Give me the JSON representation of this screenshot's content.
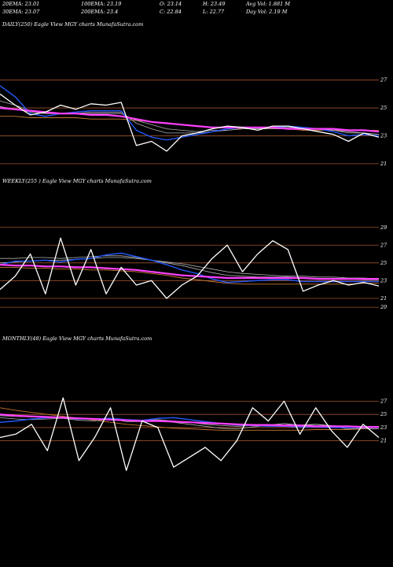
{
  "header": {
    "row1": [
      "20EMA: 23.01",
      "100EMA: 23.19",
      "O: 23.14",
      "H: 23.49",
      "Avg Vol: 1.881 M"
    ],
    "row2": [
      "30EMA: 23.07",
      "200EMA: 23.4",
      "C: 22.84",
      "L: 22.77",
      "Day Vol: 2.19 M"
    ]
  },
  "colors": {
    "background": "#000000",
    "price": "#ffffff",
    "ema_pink": "#ff40ff",
    "ema_blue": "#2255ee",
    "ema_brown": "#c87832",
    "ema_gray": "#b0b0b0",
    "gridline": "#a0522d"
  },
  "chart_data": [
    {
      "type": "line",
      "title": "DAILY(250) Eagle  View  MGY charts MunafaSutra.com",
      "yticks": [
        "27",
        "25",
        "23",
        "21"
      ],
      "ylim": [
        20.2,
        28.0
      ],
      "x": [
        0,
        10,
        20,
        30,
        40,
        50,
        60,
        70,
        80,
        90,
        100,
        110,
        120,
        130,
        140,
        150,
        160,
        170,
        180,
        190,
        200,
        210,
        220,
        230,
        240,
        250
      ],
      "series": [
        {
          "role": "price",
          "values": [
            26.0,
            25.2,
            24.5,
            24.7,
            25.2,
            24.9,
            25.3,
            25.2,
            25.4,
            22.3,
            22.6,
            21.9,
            23.0,
            23.2,
            23.5,
            23.7,
            23.6,
            23.4,
            23.7,
            23.7,
            23.5,
            23.3,
            23.1,
            22.6,
            23.2,
            22.9
          ]
        },
        {
          "role": "ema-blue",
          "values": [
            26.6,
            25.8,
            24.6,
            24.4,
            24.6,
            24.7,
            24.8,
            24.8,
            24.8,
            23.4,
            22.9,
            22.7,
            22.9,
            23.1,
            23.3,
            23.5,
            23.6,
            23.6,
            23.6,
            23.7,
            23.6,
            23.5,
            23.3,
            23.0,
            23.1,
            23.0
          ]
        },
        {
          "role": "ema-gray-1",
          "values": [
            25.5,
            25.2,
            24.8,
            24.6,
            24.6,
            24.6,
            24.7,
            24.7,
            24.7,
            23.9,
            23.5,
            23.2,
            23.2,
            23.2,
            23.3,
            23.4,
            23.5,
            23.5,
            23.6,
            23.6,
            23.6,
            23.5,
            23.4,
            23.2,
            23.2,
            23.1
          ]
        },
        {
          "role": "ema-gray-2",
          "values": [
            25.1,
            24.9,
            24.7,
            24.6,
            24.6,
            24.6,
            24.6,
            24.6,
            24.6,
            24.1,
            23.8,
            23.5,
            23.4,
            23.3,
            23.4,
            23.4,
            23.5,
            23.5,
            23.5,
            23.5,
            23.5,
            23.5,
            23.4,
            23.3,
            23.2,
            23.1
          ]
        },
        {
          "role": "ema-pink",
          "values": [
            25.0,
            24.9,
            24.8,
            24.7,
            24.6,
            24.6,
            24.5,
            24.5,
            24.4,
            24.2,
            24.0,
            23.9,
            23.8,
            23.7,
            23.6,
            23.6,
            23.6,
            23.6,
            23.6,
            23.5,
            23.5,
            23.5,
            23.5,
            23.4,
            23.4,
            23.3
          ]
        },
        {
          "role": "ema-brown",
          "values": [
            24.4,
            24.4,
            24.3,
            24.3,
            24.3,
            24.3,
            24.2,
            24.2,
            24.2,
            24.1,
            24.0,
            23.9,
            23.8,
            23.7,
            23.6,
            23.6,
            23.5,
            23.5,
            23.5,
            23.5,
            23.4,
            23.4,
            23.4,
            23.4,
            23.4,
            23.4
          ]
        }
      ]
    },
    {
      "type": "line",
      "title": "WEEKLY(255                    ) Eagle  View  MGY charts MunafaSutra.com",
      "yticks": [
        "29",
        "27",
        "25",
        "23",
        "21",
        "20"
      ],
      "ylim": [
        19.3,
        29.6
      ],
      "x": [
        0,
        10,
        20,
        30,
        40,
        50,
        60,
        70,
        80,
        90,
        100,
        110,
        120,
        130,
        140,
        150,
        160,
        170,
        180,
        190,
        200,
        210,
        220,
        230,
        240,
        250
      ],
      "series": [
        {
          "role": "price",
          "values": [
            22.0,
            23.5,
            26.0,
            21.5,
            27.8,
            22.5,
            26.5,
            21.5,
            24.5,
            22.5,
            23.0,
            21.0,
            22.5,
            23.5,
            25.5,
            27.0,
            24.0,
            26.0,
            27.5,
            26.5,
            21.8,
            22.5,
            23.0,
            22.5,
            22.8,
            22.4
          ]
        },
        {
          "role": "ema-blue",
          "values": [
            24.8,
            25.2,
            25.2,
            25.3,
            25.1,
            25.4,
            25.5,
            25.9,
            26.1,
            25.7,
            25.3,
            24.8,
            24.2,
            23.8,
            23.2,
            22.8,
            22.9,
            23.0,
            23.1,
            23.1,
            22.9,
            22.9,
            22.9,
            22.9,
            22.9,
            22.9
          ]
        },
        {
          "role": "ema-gray-1",
          "values": [
            25.5,
            25.5,
            25.6,
            25.6,
            25.5,
            25.6,
            25.7,
            25.8,
            25.8,
            25.6,
            25.3,
            25.0,
            24.7,
            24.3,
            23.9,
            23.6,
            23.5,
            23.4,
            23.4,
            23.4,
            23.3,
            23.2,
            23.2,
            23.2,
            23.1,
            23.1
          ]
        },
        {
          "role": "ema-gray-2",
          "values": [
            25.0,
            25.1,
            25.2,
            25.3,
            25.3,
            25.4,
            25.5,
            25.6,
            25.6,
            25.5,
            25.3,
            25.1,
            24.9,
            24.6,
            24.3,
            24.0,
            23.8,
            23.7,
            23.6,
            23.5,
            23.5,
            23.4,
            23.4,
            23.3,
            23.3,
            23.2
          ]
        },
        {
          "role": "ema-pink",
          "values": [
            24.8,
            24.7,
            24.7,
            24.6,
            24.6,
            24.5,
            24.5,
            24.4,
            24.3,
            24.2,
            24.0,
            23.8,
            23.6,
            23.5,
            23.4,
            23.3,
            23.3,
            23.3,
            23.3,
            23.3,
            23.3,
            23.2,
            23.2,
            23.2,
            23.2,
            23.2
          ]
        },
        {
          "role": "ema-brown",
          "values": [
            24.5,
            24.5,
            24.4,
            24.4,
            24.3,
            24.3,
            24.2,
            24.2,
            24.1,
            24.0,
            23.8,
            23.6,
            23.3,
            23.1,
            22.9,
            22.7,
            22.6,
            22.6,
            22.6,
            22.6,
            22.6,
            22.6,
            22.6,
            22.6,
            22.7,
            22.7
          ]
        }
      ]
    },
    {
      "type": "line",
      "title": "MONTHLY(48) Eagle  View  MGY charts MunafaSutra.com",
      "yticks": [
        "27",
        "25",
        "23",
        "21"
      ],
      "ylim": [
        15.0,
        28.6
      ],
      "x": [
        0,
        2,
        4,
        6,
        8,
        10,
        12,
        14,
        16,
        18,
        20,
        22,
        24,
        26,
        28,
        30,
        32,
        34,
        36,
        38,
        40,
        42,
        44,
        46,
        48
      ],
      "series": [
        {
          "role": "price",
          "values": [
            21.5,
            22.0,
            23.5,
            19.5,
            27.5,
            18.0,
            21.5,
            26.0,
            16.5,
            24.0,
            23.0,
            17.0,
            18.5,
            20.0,
            18.0,
            21.0,
            26.0,
            24.0,
            27.0,
            22.0,
            26.0,
            22.5,
            20.0,
            23.5,
            21.5
          ]
        },
        {
          "role": "ema-blue",
          "values": [
            23.8,
            24.0,
            24.3,
            24.5,
            24.5,
            24.3,
            24.3,
            24.4,
            24.2,
            24.1,
            24.4,
            24.5,
            24.2,
            23.9,
            23.6,
            23.4,
            23.3,
            23.2,
            23.2,
            23.1,
            23.1,
            23.0,
            23.0,
            23.0,
            23.0
          ]
        },
        {
          "role": "ema-gray-1",
          "values": [
            24.5,
            24.3,
            24.2,
            24.3,
            24.4,
            24.1,
            24.0,
            24.3,
            23.9,
            23.9,
            24.1,
            23.8,
            23.5,
            23.2,
            22.9,
            22.8,
            23.1,
            23.3,
            23.6,
            23.2,
            23.5,
            23.2,
            22.8,
            22.9,
            22.8
          ]
        },
        {
          "role": "ema-gray-2",
          "values": [
            24.8,
            24.7,
            24.6,
            24.6,
            24.6,
            24.4,
            24.3,
            24.4,
            24.2,
            24.1,
            24.2,
            24.0,
            23.8,
            23.5,
            23.3,
            23.2,
            23.3,
            23.4,
            23.6,
            23.4,
            23.5,
            23.3,
            23.1,
            23.1,
            23.0
          ]
        },
        {
          "role": "ema-pink",
          "values": [
            25.0,
            24.8,
            24.7,
            24.6,
            24.5,
            24.4,
            24.3,
            24.2,
            24.1,
            24.0,
            24.0,
            23.9,
            23.8,
            23.7,
            23.6,
            23.5,
            23.4,
            23.4,
            23.3,
            23.3,
            23.2,
            23.2,
            23.2,
            23.1,
            23.1
          ]
        },
        {
          "role": "ema-brown",
          "values": [
            26.0,
            25.6,
            25.3,
            25.0,
            24.7,
            24.4,
            24.1,
            23.8,
            23.5,
            23.3,
            23.1,
            22.9,
            22.8,
            22.7,
            22.6,
            22.6,
            22.6,
            22.6,
            22.6,
            22.6,
            22.7,
            22.7,
            22.7,
            22.8,
            22.8
          ]
        }
      ]
    }
  ]
}
